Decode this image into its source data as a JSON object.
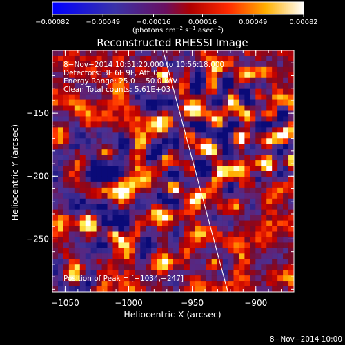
{
  "chart_data": {
    "type": "heatmap",
    "title": "Reconstructed RHESSI Image",
    "xlabel": "Heliocentric X (arcsec)",
    "ylabel": "Heliocentric Y (arcsec)",
    "xlim": [
      -1060,
      -870
    ],
    "ylim": [
      -292,
      -100
    ],
    "x_ticks": [
      -1050,
      -1000,
      -950,
      -900
    ],
    "x_tick_labels": [
      "−1050",
      "−1000",
      "−950",
      "−900"
    ],
    "y_ticks": [
      -150,
      -200,
      -250
    ],
    "y_tick_labels": [
      "−150",
      "−200",
      "−250"
    ],
    "colorbar": {
      "range": [
        -0.00082,
        0.00082
      ],
      "ticks": [
        -0.00082,
        -0.00049,
        -0.00016,
        0.00016,
        0.00049,
        0.00082
      ],
      "tick_labels": [
        "−0.00082",
        "−0.00049",
        "−0.00016",
        "0.00016",
        "0.00049",
        "0.00082"
      ],
      "units_label": "(photons cm",
      "units_sup1": "−2",
      "units_mid1": " s",
      "units_sup2": "−1",
      "units_mid2": " asec",
      "units_sup3": "−2",
      "units_end": ")"
    },
    "annotations": [
      "8−Nov−2014 10:51:20.000 to 10:56:18.000",
      "Detectors: 3F 6F 9F, Att_0",
      "Energy Range: 25.0 − 50.0 keV",
      "Clean    Total counts: 5.61E+03"
    ],
    "peak_label": "Position of Peak = [−1034,−247]",
    "peak": [
      -1034,
      -247
    ],
    "limb_line": [
      [
        -973,
        -100
      ],
      [
        -922,
        -292
      ]
    ]
  },
  "footer": {
    "timestamp": "8−Nov−2014 10:00"
  },
  "colors": {
    "background": "#000000",
    "text": "#ffffff",
    "limb": "#ffffff"
  }
}
